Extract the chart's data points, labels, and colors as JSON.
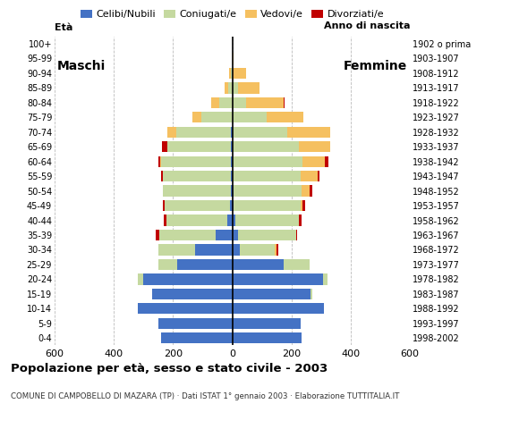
{
  "age_groups": [
    "0-4",
    "5-9",
    "10-14",
    "15-19",
    "20-24",
    "25-29",
    "30-34",
    "35-39",
    "40-44",
    "45-49",
    "50-54",
    "55-59",
    "60-64",
    "65-69",
    "70-74",
    "75-79",
    "80-84",
    "85-89",
    "90-94",
    "95-99",
    "100+"
  ],
  "birth_years": [
    "1998-2002",
    "1993-1997",
    "1988-1992",
    "1983-1987",
    "1978-1982",
    "1973-1977",
    "1968-1972",
    "1963-1967",
    "1958-1962",
    "1953-1957",
    "1948-1952",
    "1943-1947",
    "1938-1942",
    "1933-1937",
    "1928-1932",
    "1923-1927",
    "1918-1922",
    "1913-1917",
    "1908-1912",
    "1903-1907",
    "1902 o prima"
  ],
  "male": {
    "celibi": [
      240,
      248,
      320,
      270,
      300,
      185,
      125,
      55,
      18,
      8,
      5,
      5,
      5,
      5,
      5,
      0,
      0,
      0,
      0,
      0,
      0
    ],
    "coniugati": [
      0,
      0,
      0,
      0,
      18,
      65,
      125,
      190,
      205,
      220,
      228,
      228,
      235,
      215,
      185,
      105,
      45,
      15,
      5,
      0,
      0
    ],
    "vedovi": [
      0,
      0,
      0,
      0,
      0,
      0,
      0,
      0,
      0,
      0,
      0,
      0,
      3,
      0,
      30,
      30,
      25,
      12,
      5,
      0,
      0
    ],
    "divorziati": [
      0,
      0,
      0,
      0,
      0,
      0,
      0,
      12,
      8,
      5,
      0,
      8,
      5,
      18,
      0,
      0,
      0,
      0,
      0,
      0,
      0
    ]
  },
  "female": {
    "celibi": [
      235,
      230,
      310,
      265,
      305,
      175,
      25,
      20,
      10,
      5,
      5,
      0,
      0,
      0,
      0,
      0,
      0,
      0,
      0,
      0,
      0
    ],
    "coniugati": [
      0,
      0,
      0,
      5,
      18,
      85,
      118,
      195,
      215,
      225,
      228,
      232,
      238,
      225,
      185,
      115,
      48,
      18,
      0,
      0,
      0
    ],
    "vedovi": [
      0,
      0,
      0,
      0,
      0,
      0,
      5,
      0,
      0,
      8,
      28,
      55,
      75,
      105,
      145,
      125,
      125,
      75,
      48,
      5,
      0
    ],
    "divorziati": [
      0,
      0,
      0,
      0,
      0,
      0,
      8,
      5,
      8,
      8,
      8,
      8,
      12,
      0,
      0,
      0,
      5,
      0,
      0,
      0,
      0
    ]
  },
  "colors": {
    "celibi": "#4472c4",
    "coniugati": "#c5d9a0",
    "vedovi": "#f5c060",
    "divorziati": "#c00000"
  },
  "xlim": 600,
  "title": "Popolazione per età, sesso e stato civile - 2003",
  "subtitle": "COMUNE DI CAMPOBELLO DI MAZARA (TP) · Dati ISTAT 1° gennaio 2003 · Elaborazione TUTTITALIA.IT",
  "legend_labels": [
    "Celibi/Nubili",
    "Coniugati/e",
    "Vedovi/e",
    "Divorziati/e"
  ],
  "ylabel_left": "Età",
  "ylabel_right": "Anno di nascita",
  "maschi_label": "Maschi",
  "femmine_label": "Femmine",
  "background_color": "#ffffff",
  "bar_height": 0.75
}
